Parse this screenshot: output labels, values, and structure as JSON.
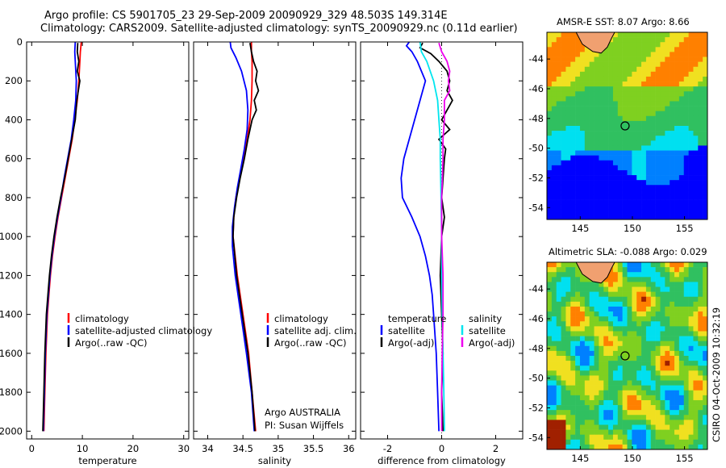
{
  "header": {
    "line1": "Argo profile: CS 5901705_23 29-Sep-2009 20090929_329 48.503S 149.314E",
    "line2": "Climatology: CARS2009. Satellite-adjusted climatology: synTS_20090929.nc (0.11d earlier)"
  },
  "credit": {
    "line1": "Argo AUSTRALIA",
    "line2": "PI: Susan Wijffels"
  },
  "stamp": "CSIRO 04-Oct-2009 10:32:19",
  "colors": {
    "climatology": "#ff0000",
    "satellite": "#0000ff",
    "argo": "#000000",
    "sal_satellite": "#00e5ee",
    "sal_argo": "#ee00ee"
  },
  "chart_data": [
    {
      "type": "line",
      "xlabel": "temperature",
      "xlim": [
        -1,
        31
      ],
      "ylim": [
        2040,
        0
      ],
      "xticks": [
        "0",
        "10",
        "20",
        "30"
      ],
      "yticks": [
        "0",
        "200",
        "400",
        "600",
        "800",
        "1000",
        "1200",
        "1400",
        "1600",
        "1800",
        "2000"
      ],
      "legend": [
        "climatology",
        "satellite-adjusted climatology",
        "Argo(..raw -QC)"
      ],
      "series": [
        {
          "name": "climatology",
          "color": "#ff0000",
          "depth": [
            0,
            50,
            100,
            200,
            300,
            400,
            500,
            600,
            700,
            800,
            900,
            1000,
            1100,
            1200,
            1300,
            1400,
            1600,
            1800,
            2000
          ],
          "values": [
            9.8,
            9.6,
            9.5,
            9.3,
            9.0,
            8.5,
            8.0,
            7.3,
            6.6,
            5.9,
            5.2,
            4.6,
            4.1,
            3.7,
            3.4,
            3.1,
            2.8,
            2.6,
            2.4
          ]
        },
        {
          "name": "satellite-adjusted climatology",
          "color": "#0000ff",
          "depth": [
            0,
            50,
            100,
            200,
            300,
            400,
            500,
            600,
            700,
            800,
            900,
            1000,
            1100,
            1200,
            1300,
            1400,
            1600,
            1800,
            2000
          ],
          "values": [
            8.6,
            8.5,
            8.6,
            8.8,
            8.7,
            8.3,
            7.8,
            7.1,
            6.4,
            5.8,
            5.1,
            4.5,
            4.0,
            3.6,
            3.3,
            3.0,
            2.7,
            2.5,
            2.3
          ]
        },
        {
          "name": "Argo(..raw -QC)",
          "color": "#000000",
          "depth": [
            5,
            50,
            100,
            150,
            200,
            250,
            300,
            400,
            500,
            600,
            700,
            800,
            900,
            1000,
            1100,
            1200,
            1300,
            1400,
            1600,
            1800,
            2000
          ],
          "values": [
            9.1,
            9.0,
            9.3,
            9.0,
            9.5,
            9.2,
            8.9,
            8.6,
            7.9,
            7.2,
            6.5,
            5.7,
            5.0,
            4.4,
            3.9,
            3.5,
            3.2,
            2.9,
            2.6,
            2.4,
            2.2
          ]
        }
      ]
    },
    {
      "type": "line",
      "xlabel": "salinity",
      "xlim": [
        33.8,
        36.1
      ],
      "ylim": [
        2040,
        0
      ],
      "xticks": [
        "34",
        "34.5",
        "35",
        "35.5",
        "36"
      ],
      "legend": [
        "climatology",
        "satellite adj. clim.",
        "Argo(..raw -QC)"
      ],
      "series": [
        {
          "name": "climatology",
          "color": "#ff0000",
          "depth": [
            0,
            50,
            100,
            200,
            300,
            400,
            500,
            600,
            700,
            800,
            900,
            1000,
            1200,
            1400,
            1600,
            1800,
            2000
          ],
          "values": [
            34.62,
            34.62,
            34.63,
            34.63,
            34.62,
            34.6,
            34.56,
            34.5,
            34.45,
            34.4,
            34.37,
            34.36,
            34.42,
            34.5,
            34.58,
            34.63,
            34.68
          ]
        },
        {
          "name": "satellite adj. clim.",
          "color": "#0000ff",
          "depth": [
            0,
            30,
            80,
            150,
            250,
            350,
            450,
            550,
            650,
            750,
            850,
            950,
            1050,
            1200,
            1400,
            1600,
            1800,
            2000
          ],
          "values": [
            34.32,
            34.33,
            34.4,
            34.48,
            34.55,
            34.57,
            34.56,
            34.52,
            34.47,
            34.42,
            34.38,
            34.35,
            34.35,
            34.39,
            34.47,
            34.55,
            34.62,
            34.66
          ]
        },
        {
          "name": "Argo(..raw -QC)",
          "color": "#000000",
          "depth": [
            5,
            50,
            100,
            150,
            200,
            250,
            300,
            350,
            400,
            450,
            500,
            600,
            700,
            800,
            900,
            1000,
            1200,
            1400,
            1600,
            1800,
            2000
          ],
          "values": [
            34.6,
            34.62,
            34.65,
            34.7,
            34.68,
            34.72,
            34.66,
            34.69,
            34.63,
            34.6,
            34.57,
            34.52,
            34.46,
            34.41,
            34.37,
            34.36,
            34.41,
            34.49,
            34.57,
            34.63,
            34.67
          ]
        }
      ]
    },
    {
      "type": "line",
      "xlabel": "difference from climatology",
      "xlim": [
        -3,
        3
      ],
      "ylim": [
        2040,
        0
      ],
      "xticks": [
        "-2",
        "0",
        "2"
      ],
      "legend": [
        "temperature",
        "satellite",
        "Argo(-adj)",
        "salinity",
        "satellite",
        "Argo(-adj)"
      ],
      "series": [
        {
          "name": "satellite",
          "group": "temperature",
          "color": "#0000ff",
          "depth": [
            0,
            20,
            50,
            100,
            200,
            300,
            400,
            500,
            600,
            700,
            800,
            900,
            1000,
            1100,
            1200,
            1300,
            1400,
            1600,
            1800,
            2000
          ],
          "values": [
            -1.2,
            -1.3,
            -1.1,
            -0.9,
            -0.6,
            -0.8,
            -1.0,
            -1.2,
            -1.4,
            -1.5,
            -1.45,
            -1.1,
            -0.8,
            -0.6,
            -0.45,
            -0.35,
            -0.3,
            -0.2,
            -0.15,
            -0.1
          ]
        },
        {
          "name": "Argo(-adj)",
          "group": "temperature",
          "color": "#000000",
          "depth": [
            5,
            30,
            60,
            100,
            150,
            200,
            250,
            300,
            350,
            400,
            450,
            500,
            550,
            600,
            700,
            800,
            900,
            1000,
            1200,
            1400,
            1600,
            1800,
            2000
          ],
          "values": [
            -0.7,
            -0.8,
            -0.4,
            -0.1,
            0.2,
            0.3,
            0.2,
            0.4,
            0.2,
            0.0,
            0.3,
            -0.1,
            0.15,
            0.1,
            0.05,
            0.0,
            0.1,
            0.0,
            -0.05,
            0.0,
            0.05,
            0.0,
            0.05
          ]
        },
        {
          "name": "satellite",
          "group": "salinity",
          "color": "#00e5ee",
          "depth": [
            0,
            50,
            100,
            200,
            300,
            400,
            500,
            600,
            800,
            1000,
            1200,
            1400,
            1600,
            1800,
            2000
          ],
          "values": [
            -0.8,
            -0.75,
            -0.55,
            -0.3,
            -0.15,
            -0.1,
            -0.05,
            -0.05,
            -0.02,
            0.0,
            0.0,
            0.02,
            0.05,
            0.08,
            0.1
          ]
        },
        {
          "name": "Argo(-adj)",
          "group": "salinity",
          "color": "#ee00ee",
          "depth": [
            5,
            50,
            100,
            150,
            200,
            250,
            300,
            400,
            500,
            600,
            800,
            1000,
            1200,
            1400,
            1600,
            1800,
            2000
          ],
          "values": [
            -0.1,
            0.0,
            0.2,
            0.3,
            0.25,
            0.3,
            0.1,
            0.1,
            0.05,
            0.05,
            0.0,
            0.0,
            0.05,
            0.05,
            0.02,
            0.0,
            0.0
          ]
        }
      ]
    },
    {
      "type": "heatmap",
      "title": "AMSR-E SST: 8.07 Argo: 8.66",
      "xticks": [
        "145",
        "150",
        "155"
      ],
      "yticks": [
        "-44",
        "-46",
        "-48",
        "-50",
        "-52",
        "-54"
      ],
      "xlim": [
        141.8,
        157.2
      ],
      "ylim": [
        -54.8,
        -42.2
      ],
      "marker": {
        "lon": 149.3,
        "lat": -48.5
      }
    },
    {
      "type": "heatmap",
      "title": "Altimetric SLA: -0.088 Argo: 0.029",
      "xticks": [
        "145",
        "150",
        "155"
      ],
      "yticks": [
        "-44",
        "-46",
        "-48",
        "-50",
        "-52",
        "-54"
      ],
      "xlim": [
        141.8,
        157.2
      ],
      "ylim": [
        -54.8,
        -42.2
      ],
      "marker": {
        "lon": 149.3,
        "lat": -48.5
      }
    }
  ]
}
